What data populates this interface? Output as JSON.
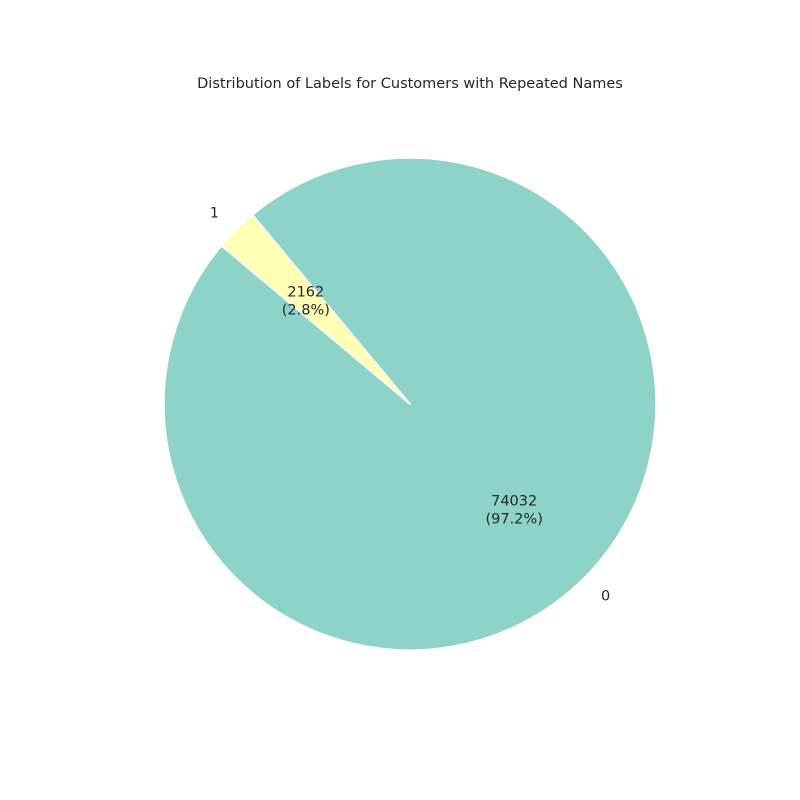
{
  "chart_data": {
    "type": "pie",
    "title": "Distribution of Labels for Customers with Repeated Names",
    "categories": [
      "0",
      "1"
    ],
    "values": [
      74032,
      2162
    ],
    "value_labels": [
      "74032",
      "2162"
    ],
    "percent_labels": [
      "(97.2%)",
      "(2.8%)"
    ],
    "colors": [
      "#8dd3c7",
      "#ffffb3"
    ],
    "legend": false,
    "start_angle_deg": 140,
    "direction": "counterclockwise"
  }
}
